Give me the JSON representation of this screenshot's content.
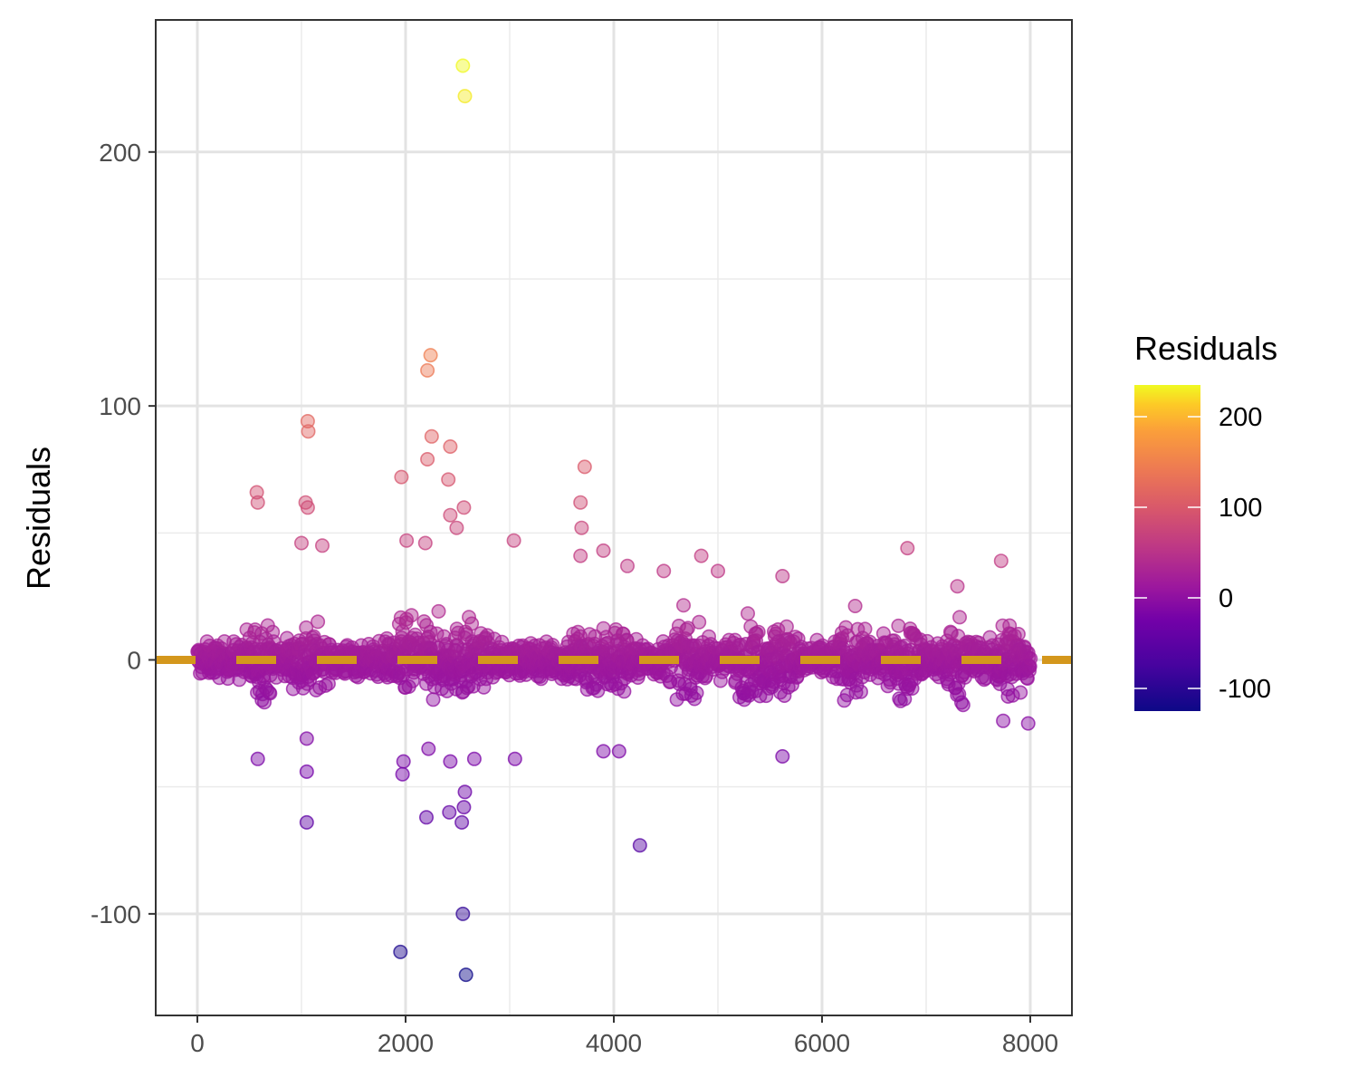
{
  "chart_data": {
    "type": "scatter",
    "xlabel": "",
    "ylabel": "Residuals",
    "xlim": [
      -400,
      8400
    ],
    "ylim": [
      -140,
      252
    ],
    "x_ticks": [
      0,
      2000,
      4000,
      6000,
      8000
    ],
    "x_tick_labels": [
      "0",
      "2000",
      "4000",
      "6000",
      "8000"
    ],
    "y_ticks": [
      -100,
      0,
      100,
      200
    ],
    "y_tick_labels": [
      "-100",
      "0",
      "100",
      "200"
    ],
    "grid": true,
    "reference_line": {
      "y": 0,
      "style": "dashed",
      "color": "#d4971c"
    },
    "colorbar": {
      "title": "Residuals",
      "range": [
        -125,
        235
      ],
      "ticks": [
        -100,
        0,
        100,
        200
      ],
      "tick_labels": [
        "-100",
        "0",
        "100",
        "200"
      ],
      "palette": "plasma",
      "placement": "right"
    },
    "outliers": [
      {
        "x": 2550,
        "y": 234
      },
      {
        "x": 2570,
        "y": 222
      },
      {
        "x": 2240,
        "y": 120
      },
      {
        "x": 2210,
        "y": 114
      },
      {
        "x": 1060,
        "y": 94
      },
      {
        "x": 1065,
        "y": 90
      },
      {
        "x": 2250,
        "y": 88
      },
      {
        "x": 2430,
        "y": 84
      },
      {
        "x": 2210,
        "y": 79
      },
      {
        "x": 3720,
        "y": 76
      },
      {
        "x": 1960,
        "y": 72
      },
      {
        "x": 2410,
        "y": 71
      },
      {
        "x": 570,
        "y": 66
      },
      {
        "x": 580,
        "y": 62
      },
      {
        "x": 1040,
        "y": 62
      },
      {
        "x": 1060,
        "y": 60
      },
      {
        "x": 2560,
        "y": 60
      },
      {
        "x": 3680,
        "y": 62
      },
      {
        "x": 2430,
        "y": 57
      },
      {
        "x": 2490,
        "y": 52
      },
      {
        "x": 3690,
        "y": 52
      },
      {
        "x": 1000,
        "y": 46
      },
      {
        "x": 1200,
        "y": 45
      },
      {
        "x": 2010,
        "y": 47
      },
      {
        "x": 2190,
        "y": 46
      },
      {
        "x": 3040,
        "y": 47
      },
      {
        "x": 6820,
        "y": 44
      },
      {
        "x": 3900,
        "y": 43
      },
      {
        "x": 3680,
        "y": 41
      },
      {
        "x": 4840,
        "y": 41
      },
      {
        "x": 7720,
        "y": 39
      },
      {
        "x": 4130,
        "y": 37
      },
      {
        "x": 4480,
        "y": 35
      },
      {
        "x": 5000,
        "y": 35
      },
      {
        "x": 5620,
        "y": 33
      },
      {
        "x": 7300,
        "y": 29
      },
      {
        "x": 1050,
        "y": -31
      },
      {
        "x": 1050,
        "y": -44
      },
      {
        "x": 1050,
        "y": -64
      },
      {
        "x": 580,
        "y": -39
      },
      {
        "x": 1980,
        "y": -40
      },
      {
        "x": 1970,
        "y": -45
      },
      {
        "x": 2220,
        "y": -35
      },
      {
        "x": 2430,
        "y": -40
      },
      {
        "x": 2420,
        "y": -60
      },
      {
        "x": 2200,
        "y": -62
      },
      {
        "x": 2570,
        "y": -52
      },
      {
        "x": 2560,
        "y": -58
      },
      {
        "x": 2540,
        "y": -64
      },
      {
        "x": 2660,
        "y": -39
      },
      {
        "x": 3050,
        "y": -39
      },
      {
        "x": 3900,
        "y": -36
      },
      {
        "x": 4050,
        "y": -36
      },
      {
        "x": 4250,
        "y": -73
      },
      {
        "x": 5620,
        "y": -38
      },
      {
        "x": 7740,
        "y": -24
      },
      {
        "x": 7980,
        "y": -25
      },
      {
        "x": 1950,
        "y": -115
      },
      {
        "x": 2550,
        "y": -100
      },
      {
        "x": 2580,
        "y": -124
      }
    ],
    "dense_band": {
      "x_range": [
        0,
        8000
      ],
      "bursts_at_x": [
        600,
        1050,
        2000,
        2300,
        2600,
        3700,
        4000,
        4700,
        5300,
        5600,
        6300,
        6800,
        7300,
        7800
      ]
    }
  }
}
